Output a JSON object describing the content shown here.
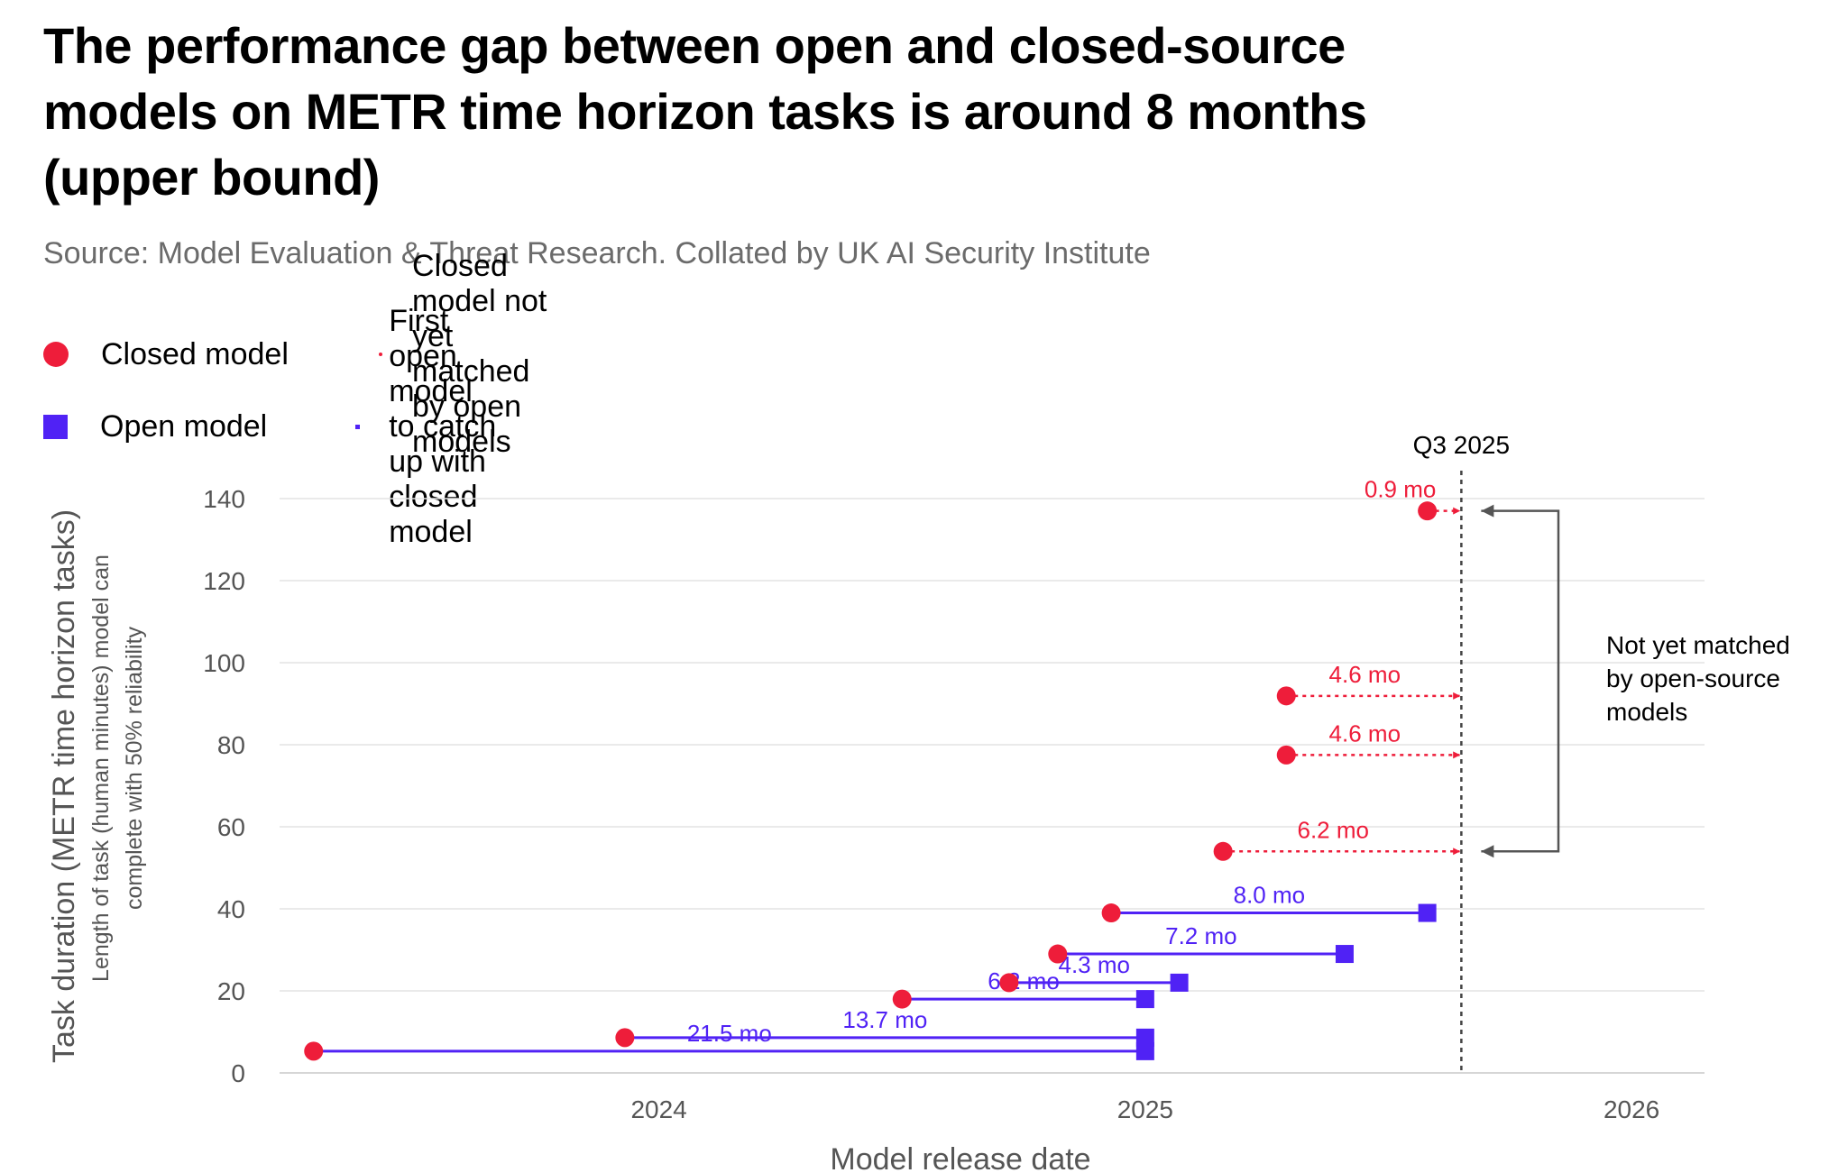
{
  "title": "The performance gap between open and closed-source models on METR time horizon tasks is around 8 months (upper bound)",
  "source": "Source: Model Evaluation & Threat Research. Collated by UK AI Security Institute",
  "legend": {
    "closed_model": "Closed model",
    "not_matched": "Closed model not yet matched by open models",
    "open_model": "Open model",
    "first_open": "First open model to catch up with closed model"
  },
  "colors": {
    "closed": "#ee1d3a",
    "open": "#5022f5",
    "grid": "#e3e3e3",
    "axis_text": "#555555",
    "annotation": "#555555"
  },
  "chart_data": {
    "type": "scatter",
    "xlabel": "Model release date",
    "ylabel": "Task duration (METR time horizon tasks)",
    "ylabel_sub": [
      "Length of task (human minutes) model can",
      "complete with 50% reliability"
    ],
    "x_ticks": [
      {
        "value": 2024.0,
        "label": "2024"
      },
      {
        "value": 2025.0,
        "label": "2025"
      },
      {
        "value": 2026.0,
        "label": "2026"
      }
    ],
    "y_ticks": [
      0,
      20,
      40,
      60,
      80,
      100,
      120,
      140
    ],
    "xlim": [
      2023.22,
      2026.15
    ],
    "ylim": [
      0,
      140
    ],
    "vline": {
      "x": 2025.65,
      "label": "Q3 2025"
    },
    "bracket": {
      "y_top": 137,
      "y_bottom": 54,
      "label": [
        "Not yet matched",
        "by open-source",
        "models"
      ]
    },
    "matched_pairs": [
      {
        "closed": {
          "x": 2023.29,
          "y": 5.3
        },
        "open": {
          "x": 2025.0,
          "y": 5.3
        },
        "gap_label": "21.5 mo"
      },
      {
        "closed": {
          "x": 2023.93,
          "y": 8.6
        },
        "open": {
          "x": 2025.0,
          "y": 8.6
        },
        "gap_label": "13.7 mo"
      },
      {
        "closed": {
          "x": 2024.5,
          "y": 18
        },
        "open": {
          "x": 2025.0,
          "y": 18
        },
        "gap_label": "6.2 mo"
      },
      {
        "closed": {
          "x": 2024.72,
          "y": 22
        },
        "open": {
          "x": 2025.07,
          "y": 22
        },
        "gap_label": "4.3 mo"
      },
      {
        "closed": {
          "x": 2024.82,
          "y": 29
        },
        "open": {
          "x": 2025.41,
          "y": 29
        },
        "gap_label": "7.2 mo"
      },
      {
        "closed": {
          "x": 2024.93,
          "y": 39
        },
        "open": {
          "x": 2025.58,
          "y": 39
        },
        "gap_label": "8.0 mo"
      }
    ],
    "unmatched": [
      {
        "closed": {
          "x": 2025.16,
          "y": 54
        },
        "gap_label": "6.2 mo"
      },
      {
        "closed": {
          "x": 2025.29,
          "y": 77.5
        },
        "gap_label": "4.6 mo"
      },
      {
        "closed": {
          "x": 2025.29,
          "y": 91.9
        },
        "gap_label": "4.6 mo"
      },
      {
        "closed": {
          "x": 2025.58,
          "y": 137
        },
        "gap_label": "0.9 mo"
      }
    ]
  }
}
